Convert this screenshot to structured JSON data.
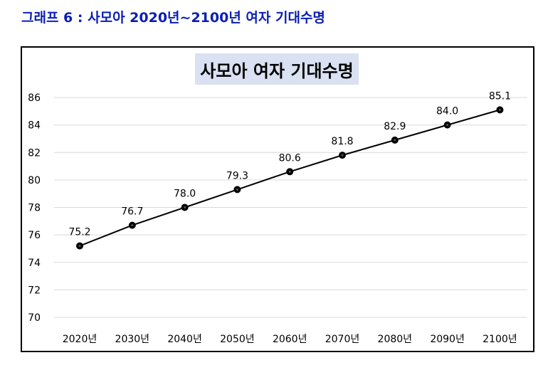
{
  "caption": "그래프 6 : 사모아 2020년~2100년 여자 기대수명",
  "colors": {
    "caption": "#0a1eb4",
    "title_bg": "#d9e1f2",
    "line": "#000000",
    "marker": "#000000",
    "grid": "#d9d9d9"
  },
  "chart_data": {
    "type": "line",
    "title": "사모아 여자 기대수명",
    "categories": [
      "2020년",
      "2030년",
      "2040년",
      "2050년",
      "2060년",
      "2070년",
      "2080년",
      "2090년",
      "2100년"
    ],
    "values": [
      75.2,
      76.7,
      78.0,
      79.3,
      80.6,
      81.8,
      82.9,
      84.0,
      85.1
    ],
    "data_labels": [
      "75.2",
      "76.7",
      "78.0",
      "79.3",
      "80.6",
      "81.8",
      "82.9",
      "84.0",
      "85.1"
    ],
    "y_ticks": [
      "70",
      "72",
      "74",
      "76",
      "78",
      "80",
      "82",
      "84",
      "86"
    ],
    "ylim": [
      70,
      86
    ],
    "grid": true,
    "legend": "none",
    "xlabel": "",
    "ylabel": ""
  }
}
